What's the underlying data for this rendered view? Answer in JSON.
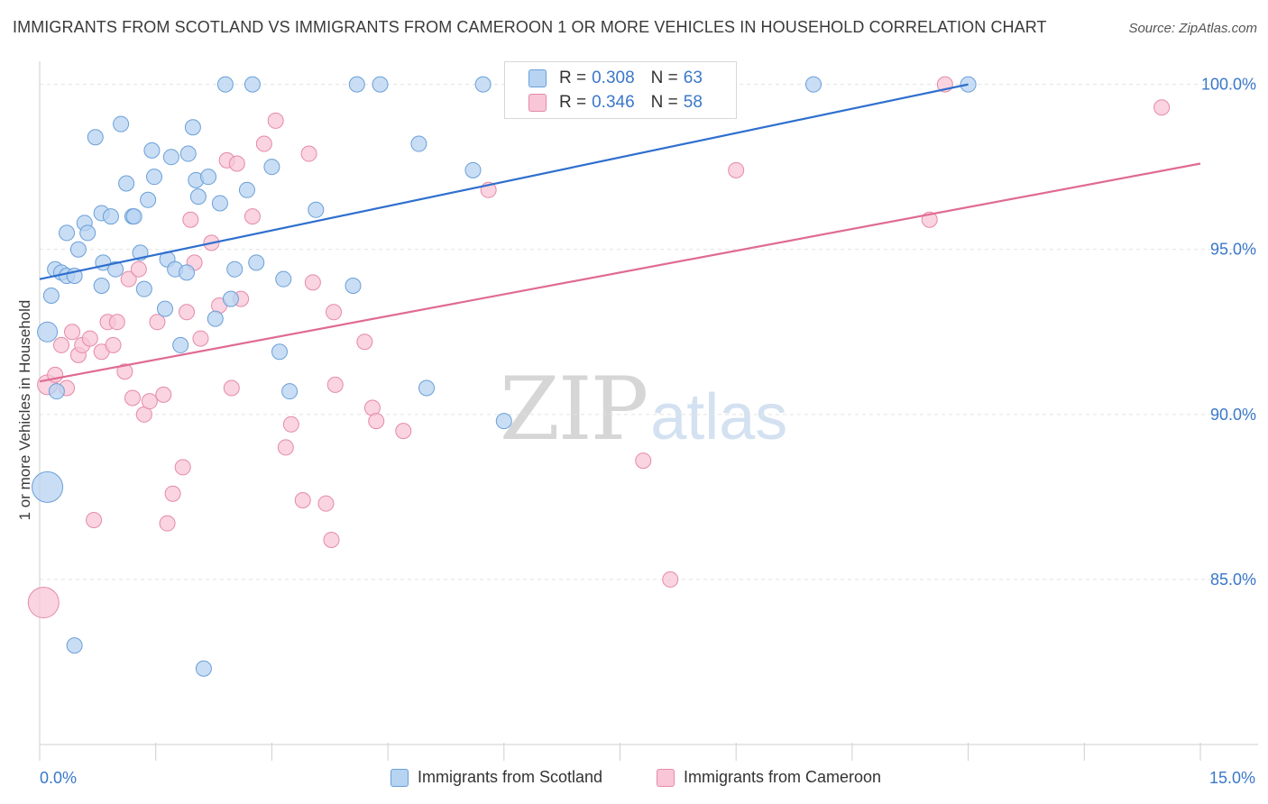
{
  "title": "IMMIGRANTS FROM SCOTLAND VS IMMIGRANTS FROM CAMEROON 1 OR MORE VEHICLES IN HOUSEHOLD CORRELATION CHART",
  "source": "Source: ZipAtlas.com",
  "watermark": {
    "zip": "ZIP",
    "atlas": "atlas"
  },
  "legend": {
    "rows": [
      {
        "r_label": "R =",
        "r_value": "0.308",
        "n_label": "N =",
        "n_value": "63"
      },
      {
        "r_label": "R =",
        "r_value": "0.346",
        "n_label": "N =",
        "n_value": "58"
      }
    ]
  },
  "colors": {
    "scotland_fill": "#b7d3f2",
    "scotland_stroke": "#6a9fd8",
    "scotland_line": "#2f6fce",
    "cameroon_fill": "#f8c6d6",
    "cameroon_stroke": "#e58aa8",
    "cameroon_line": "#e06a93",
    "tick_label": "#3a78c9",
    "grid": "#e2e2e2"
  },
  "chart_data": {
    "type": "scatter",
    "title": "IMMIGRANTS FROM SCOTLAND VS IMMIGRANTS FROM CAMEROON 1 OR MORE VEHICLES IN HOUSEHOLD CORRELATION CHART",
    "xlabel": "",
    "ylabel": "1 or more Vehicles in Household",
    "xlim": [
      0,
      15
    ],
    "ylim": [
      80.0,
      100.7
    ],
    "x_tick_labels": [
      "0.0%",
      "15.0%"
    ],
    "y_ticks": [
      85,
      90,
      95,
      100
    ],
    "y_tick_labels": [
      "85.0%",
      "90.0%",
      "95.0%",
      "100.0%"
    ],
    "grid": true,
    "legend_position": "top-center",
    "series": [
      {
        "name": "Immigrants from Scotland",
        "R": 0.308,
        "N": 63,
        "trend": {
          "x": [
            0,
            12.0
          ],
          "y": [
            94.1,
            100.0
          ]
        },
        "points": [
          [
            0.1,
            87.8,
            "big"
          ],
          [
            0.1,
            92.5,
            "mid"
          ],
          [
            0.15,
            93.6
          ],
          [
            0.2,
            94.4
          ],
          [
            0.28,
            94.3
          ],
          [
            0.35,
            94.2
          ],
          [
            0.22,
            90.7
          ],
          [
            0.35,
            95.5
          ],
          [
            0.45,
            94.2
          ],
          [
            0.5,
            95.0
          ],
          [
            0.58,
            95.8
          ],
          [
            0.62,
            95.5
          ],
          [
            0.72,
            98.4
          ],
          [
            0.8,
            93.9
          ],
          [
            0.82,
            94.6
          ],
          [
            0.8,
            96.1
          ],
          [
            0.92,
            96.0
          ],
          [
            0.98,
            94.4
          ],
          [
            1.05,
            98.8
          ],
          [
            1.12,
            97.0
          ],
          [
            1.2,
            96.0
          ],
          [
            1.22,
            96.0
          ],
          [
            1.3,
            94.9
          ],
          [
            1.35,
            93.8
          ],
          [
            1.4,
            96.5
          ],
          [
            1.45,
            98.0
          ],
          [
            1.48,
            97.2
          ],
          [
            1.62,
            93.2
          ],
          [
            1.65,
            94.7
          ],
          [
            1.7,
            97.8
          ],
          [
            1.75,
            94.4
          ],
          [
            1.82,
            92.1
          ],
          [
            1.9,
            94.3
          ],
          [
            1.92,
            97.9
          ],
          [
            1.98,
            98.7
          ],
          [
            2.02,
            97.1
          ],
          [
            2.05,
            96.6
          ],
          [
            2.18,
            97.2
          ],
          [
            2.27,
            92.9
          ],
          [
            2.33,
            96.4
          ],
          [
            2.4,
            100.0
          ],
          [
            2.47,
            93.5
          ],
          [
            2.52,
            94.4
          ],
          [
            2.68,
            96.8
          ],
          [
            2.75,
            100.0
          ],
          [
            2.8,
            94.6
          ],
          [
            3.0,
            97.5
          ],
          [
            3.1,
            91.9
          ],
          [
            3.15,
            94.1
          ],
          [
            3.23,
            90.7
          ],
          [
            3.57,
            96.2
          ],
          [
            4.05,
            93.9
          ],
          [
            4.1,
            100.0
          ],
          [
            4.4,
            100.0
          ],
          [
            4.9,
            98.2
          ],
          [
            5.0,
            90.8
          ],
          [
            5.6,
            97.4
          ],
          [
            5.73,
            100.0
          ],
          [
            6.0,
            89.8
          ],
          [
            10.0,
            100.0
          ],
          [
            12.0,
            100.0
          ],
          [
            0.45,
            83.0
          ],
          [
            2.12,
            82.3
          ]
        ]
      },
      {
        "name": "Immigrants from Cameroon",
        "R": 0.346,
        "N": 58,
        "trend": {
          "x": [
            0,
            15.0
          ],
          "y": [
            91.0,
            97.6
          ]
        },
        "points": [
          [
            0.05,
            84.3,
            "big"
          ],
          [
            0.1,
            90.9,
            "mid"
          ],
          [
            0.2,
            91.2
          ],
          [
            0.28,
            92.1
          ],
          [
            0.35,
            90.8
          ],
          [
            0.42,
            92.5
          ],
          [
            0.5,
            91.8
          ],
          [
            0.55,
            92.1
          ],
          [
            0.65,
            92.3
          ],
          [
            0.7,
            86.8
          ],
          [
            0.8,
            91.9
          ],
          [
            0.88,
            92.8
          ],
          [
            0.95,
            92.1
          ],
          [
            1.0,
            92.8
          ],
          [
            1.1,
            91.3
          ],
          [
            1.15,
            94.1
          ],
          [
            1.2,
            90.5
          ],
          [
            1.28,
            94.4
          ],
          [
            1.35,
            90.0
          ],
          [
            1.42,
            90.4
          ],
          [
            1.52,
            92.8
          ],
          [
            1.6,
            90.6
          ],
          [
            1.65,
            86.7
          ],
          [
            1.72,
            87.6
          ],
          [
            1.85,
            88.4
          ],
          [
            1.9,
            93.1
          ],
          [
            1.95,
            95.9
          ],
          [
            2.0,
            94.6
          ],
          [
            2.08,
            92.3
          ],
          [
            2.22,
            95.2
          ],
          [
            2.32,
            93.3
          ],
          [
            2.42,
            97.7
          ],
          [
            2.48,
            90.8
          ],
          [
            2.55,
            97.6
          ],
          [
            2.6,
            93.5
          ],
          [
            2.75,
            96.0
          ],
          [
            2.9,
            98.2
          ],
          [
            3.05,
            98.9
          ],
          [
            3.18,
            89.0
          ],
          [
            3.25,
            89.7
          ],
          [
            3.4,
            87.4
          ],
          [
            3.48,
            97.9
          ],
          [
            3.53,
            94.0
          ],
          [
            3.7,
            87.3
          ],
          [
            3.77,
            86.2
          ],
          [
            3.82,
            90.9
          ],
          [
            4.2,
            92.2
          ],
          [
            4.3,
            90.2
          ],
          [
            4.35,
            89.8
          ],
          [
            4.7,
            89.5
          ],
          [
            5.8,
            96.8
          ],
          [
            7.8,
            88.6
          ],
          [
            8.15,
            85.0
          ],
          [
            9.0,
            97.4
          ],
          [
            11.5,
            95.9
          ],
          [
            11.7,
            100.0
          ],
          [
            14.5,
            99.3
          ],
          [
            3.8,
            93.1
          ]
        ]
      }
    ]
  },
  "bottom_legend": [
    "Immigrants from Scotland",
    "Immigrants from Cameroon"
  ]
}
